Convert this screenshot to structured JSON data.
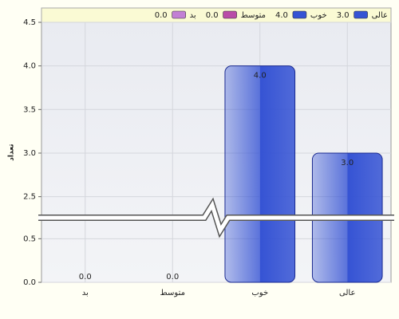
{
  "chart_data": {
    "type": "bar",
    "y_label": "تعداد",
    "categories": [
      "بد",
      "متوسط",
      "خوب",
      "عالی"
    ],
    "values": [
      0.0,
      0.0,
      4.0,
      3.0
    ],
    "value_labels": [
      "0.0",
      "0.0",
      "4.0",
      "3.0"
    ],
    "colors": [
      "#c27fd4",
      "#b94ba8",
      "#3553d4",
      "#3553d4"
    ],
    "ylim": [
      0,
      4.5
    ],
    "axis_break": [
      0.7,
      2.3
    ],
    "yticks": [
      {
        "value": 0,
        "label": "0.0"
      },
      {
        "value": 0.5,
        "label": "0.5"
      },
      {
        "value": 2.5,
        "label": "2.5"
      },
      {
        "value": 3,
        "label": "3.0"
      },
      {
        "value": 3.5,
        "label": "3.5"
      },
      {
        "value": 4,
        "label": "4.0"
      },
      {
        "value": 4.5,
        "label": "4.5"
      }
    ],
    "grid": true
  }
}
